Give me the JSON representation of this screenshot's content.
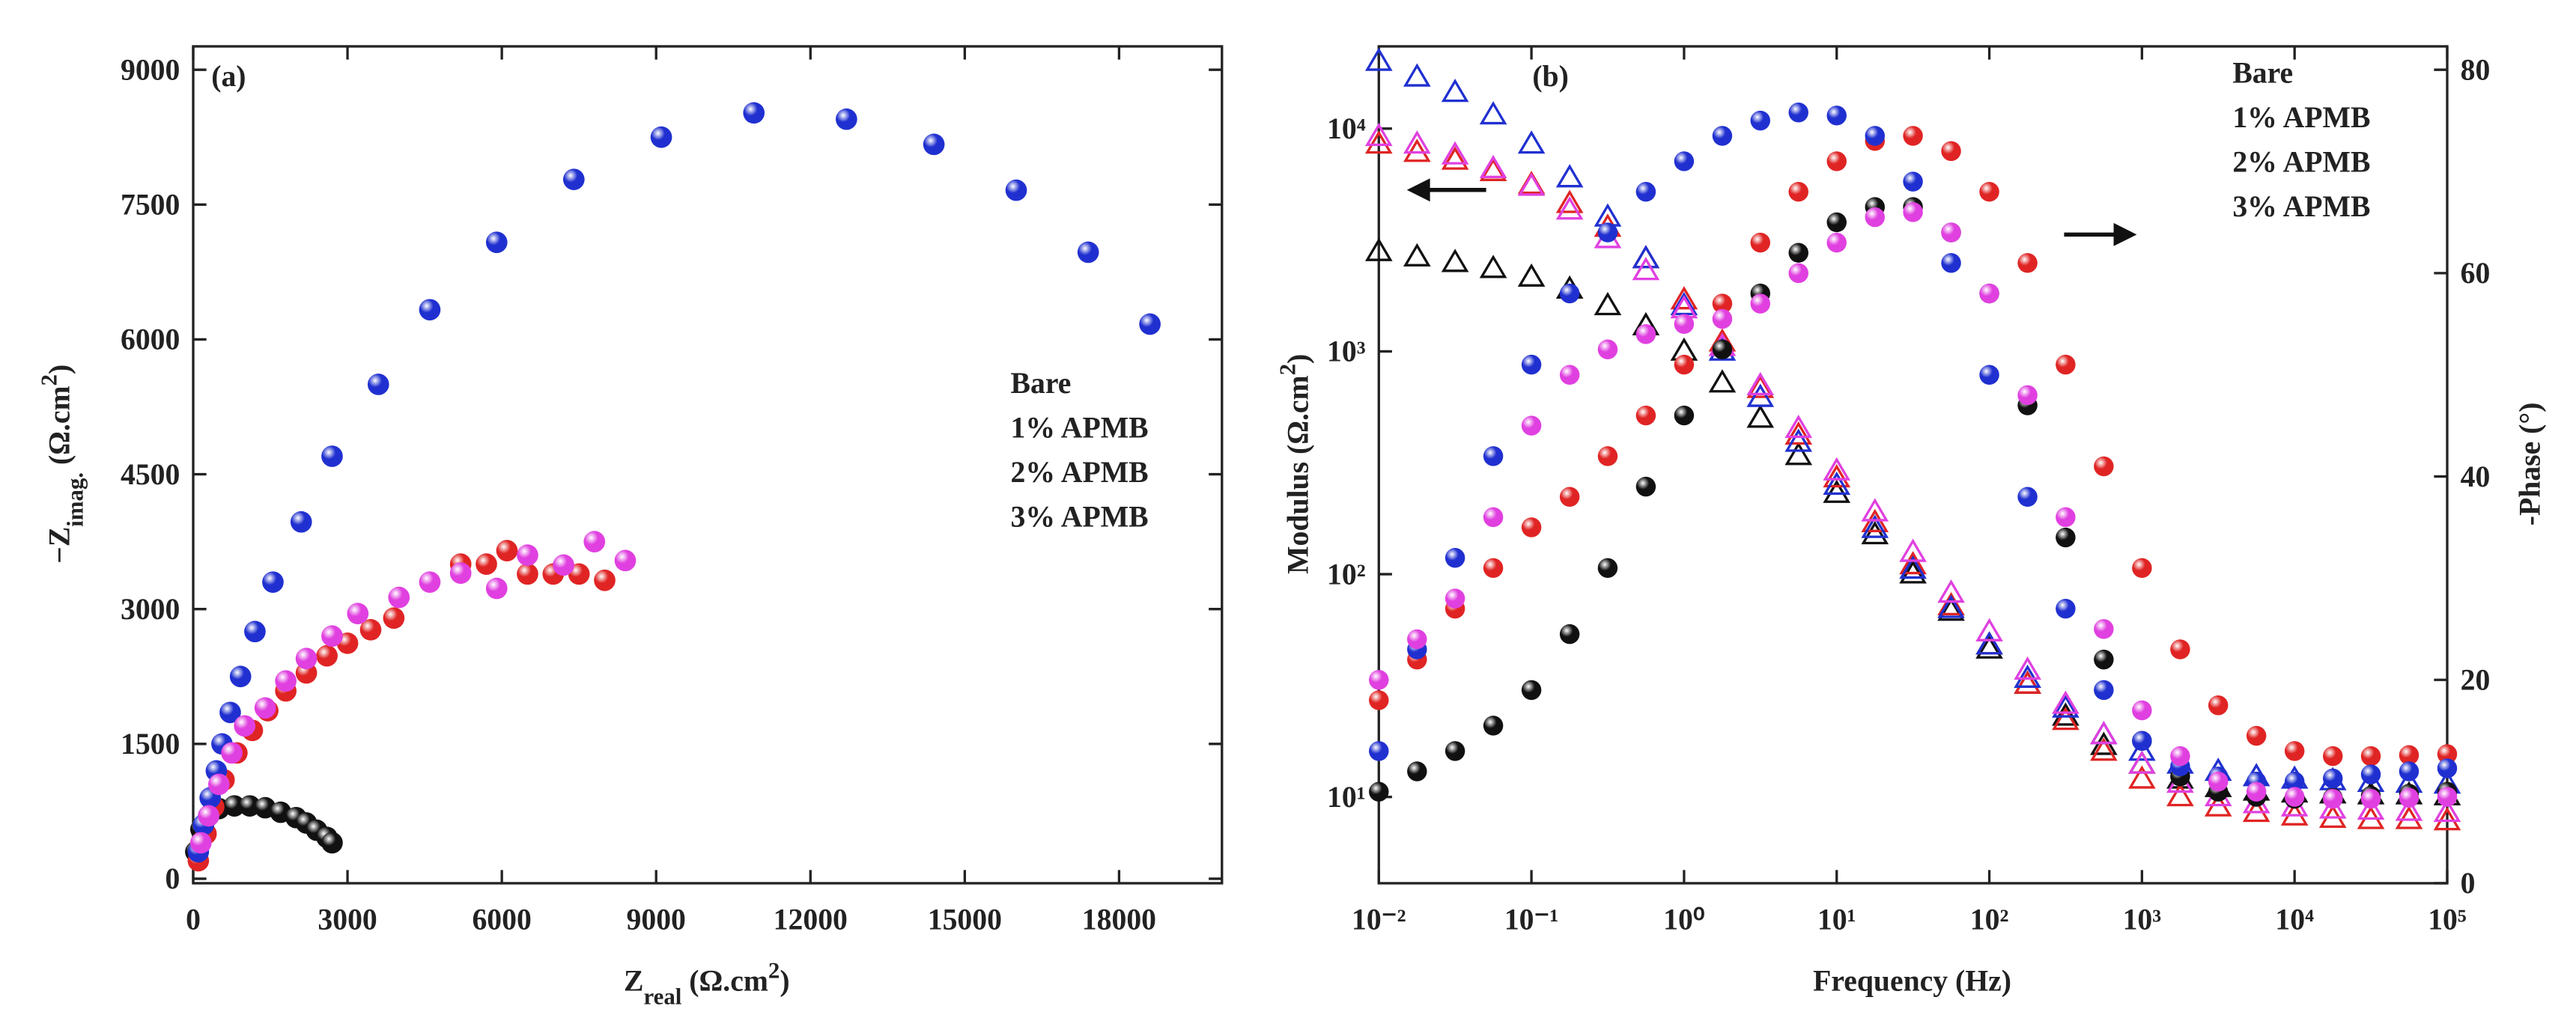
{
  "chart_data": [
    {
      "type": "scatter",
      "annotation": "(a)",
      "xlabel": [
        {
          "text": "Z"
        },
        {
          "text": "real",
          "shift": "sub"
        },
        {
          "text": " (Ω.cm"
        },
        {
          "text": "2",
          "shift": "super"
        },
        {
          "text": ")"
        }
      ],
      "ylabel": [
        {
          "text": "−Z"
        },
        {
          "text": "imag.",
          "shift": "sub"
        },
        {
          "text": " (Ω.cm"
        },
        {
          "text": "2",
          "shift": "super"
        },
        {
          "text": ")"
        }
      ],
      "xlim": [
        0,
        20000
      ],
      "ylim": [
        -50,
        9260
      ],
      "xticks": [
        0,
        3000,
        6000,
        9000,
        12000,
        15000,
        18000
      ],
      "yticks": [
        0,
        1500,
        3000,
        4500,
        6000,
        7500,
        9000
      ],
      "legend": "center-right",
      "series": [
        {
          "name": "Bare",
          "color": "#111111",
          "x": [
            50,
            150,
            300,
            500,
            800,
            1100,
            1400,
            1700,
            2000,
            2200,
            2400,
            2600,
            2700
          ],
          "values": [
            300,
            550,
            700,
            780,
            810,
            810,
            790,
            740,
            680,
            620,
            540,
            460,
            400
          ]
        },
        {
          "name": "1% APMB",
          "color": "#e02424",
          "x": [
            100,
            250,
            400,
            600,
            850,
            1150,
            1450,
            1800,
            2200,
            2600,
            3000,
            3450,
            3900,
            5200,
            5700,
            6100,
            6500,
            7000,
            7500,
            8000
          ],
          "values": [
            200,
            500,
            800,
            1100,
            1400,
            1650,
            1870,
            2090,
            2290,
            2480,
            2620,
            2770,
            2900,
            3500,
            3500,
            3650,
            3390,
            3390,
            3390,
            3320
          ]
        },
        {
          "name": "2% APMB",
          "color": "#2030d0",
          "x": [
            100,
            200,
            330,
            450,
            560,
            720,
            920,
            1200,
            1550,
            2100,
            2700,
            3600,
            4600,
            5900,
            7400,
            9100,
            10900,
            12700,
            14400,
            16000,
            17400,
            18600
          ],
          "values": [
            300,
            600,
            900,
            1200,
            1500,
            1850,
            2250,
            2750,
            3300,
            3970,
            4700,
            5500,
            6330,
            7080,
            7780,
            8250,
            8520,
            8450,
            8170,
            7660,
            6970,
            6170
          ]
        },
        {
          "name": "3% APMB",
          "color": "#e040e0",
          "x": [
            150,
            300,
            500,
            750,
            1000,
            1400,
            1800,
            2200,
            2700,
            3200,
            4000,
            4600,
            5200,
            5900,
            6500,
            7200,
            7800,
            8400
          ],
          "values": [
            400,
            700,
            1050,
            1400,
            1700,
            1900,
            2200,
            2450,
            2700,
            2950,
            3130,
            3300,
            3400,
            3230,
            3600,
            3490,
            3750,
            3540
          ]
        }
      ]
    },
    {
      "type": "bode",
      "annotation": "(b)",
      "xlabel": [
        {
          "text": "Frequency (Hz)"
        }
      ],
      "ylabel": [
        {
          "text": "Modulus (Ω.cm"
        },
        {
          "text": "2",
          "shift": "super"
        },
        {
          "text": ")"
        }
      ],
      "y2label": [
        {
          "text": "-Phase (°)"
        }
      ],
      "xscale": "log",
      "yscale": "log",
      "xlim": [
        0.01,
        100000
      ],
      "ylim": [
        4.1,
        23400
      ],
      "y2lim": [
        0,
        82.3
      ],
      "xticks": [
        {
          "value": 0.01,
          "label": "10⁻²"
        },
        {
          "value": 0.1,
          "label": "10⁻¹"
        },
        {
          "value": 1,
          "label": "10⁰"
        },
        {
          "value": 10,
          "label": "10¹"
        },
        {
          "value": 100,
          "label": "10²"
        },
        {
          "value": 1000,
          "label": "10³"
        },
        {
          "value": 10000,
          "label": "10⁴"
        },
        {
          "value": 100000,
          "label": "10⁵"
        }
      ],
      "yticks": [
        {
          "value": 10,
          "label": "10¹"
        },
        {
          "value": 100,
          "label": "10²"
        },
        {
          "value": 1000,
          "label": "10³"
        },
        {
          "value": 10000,
          "label": "10⁴"
        }
      ],
      "y2ticks": [
        0,
        20,
        40,
        60,
        80
      ],
      "legend": "top-right",
      "x": [
        0.01,
        0.0178,
        0.0316,
        0.0562,
        0.1,
        0.178,
        0.316,
        0.562,
        1,
        1.78,
        3.16,
        5.62,
        10,
        17.8,
        31.6,
        56.2,
        100,
        178,
        316,
        562,
        1000,
        1780,
        3160,
        5620,
        10000,
        17800,
        31600,
        56200,
        100000
      ],
      "series": [
        {
          "name": "Bare",
          "color": "#111111",
          "modulus": {
            "values": [
              2800,
              2650,
              2500,
              2350,
              2150,
              1900,
              1600,
              1300,
              1000,
              720,
              500,
              340,
              230,
              150,
              100,
              68,
              46,
              32,
              23,
              17,
              14,
              12,
              11,
              10.6,
              10.4,
              10.3,
              10.2,
              10.2,
              10.1
            ]
          },
          "phase": {
            "axis": "y2",
            "values": [
              9,
              11,
              13,
              15.5,
              19,
              24.5,
              31,
              39,
              46,
              52.5,
              58,
              62,
              65,
              66.5,
              66.5,
              64,
              58,
              47,
              34,
              22,
              14,
              10.5,
              9,
              8.5,
              8.3,
              8.4,
              8.6,
              8.8,
              9
            ]
          }
        },
        {
          "name": "1% APMB",
          "color": "#e02424",
          "modulus": {
            "values": [
              8500,
              7800,
              7200,
              6400,
              5600,
              4600,
              3600,
              2600,
              1700,
              1100,
              680,
              420,
              270,
              170,
              110,
              72,
              48,
              32,
              22,
              16,
              12,
              10,
              9,
              8.5,
              8.2,
              8,
              7.9,
              7.9,
              7.8
            ]
          },
          "phase": {
            "axis": "y2",
            "values": [
              18,
              22,
              27,
              31,
              35,
              38,
              42,
              46,
              51,
              57,
              63,
              68,
              71,
              73,
              73.5,
              72,
              68,
              61,
              51,
              41,
              31,
              23,
              17.5,
              14.5,
              13,
              12.5,
              12.5,
              12.6,
              12.7
            ]
          }
        },
        {
          "name": "2% APMB",
          "color": "#2030d0",
          "modulus": {
            "values": [
              20000,
              17000,
              14500,
              11500,
              8500,
              6000,
              4000,
              2600,
              1600,
              1000,
              620,
              390,
              250,
              160,
              105,
              70,
              48,
              34,
              25,
              19,
              16,
              14,
              13,
              12.3,
              12,
              11.8,
              11.6,
              11.5,
              11.4
            ]
          },
          "phase": {
            "axis": "y2",
            "values": [
              13,
              23,
              32,
              42,
              51,
              58,
              64,
              68,
              71,
              73.5,
              75,
              75.8,
              75.5,
              73.5,
              69,
              61,
              50,
              38,
              27,
              19,
              14,
              11.5,
              10.5,
              10,
              10,
              10.3,
              10.7,
              11,
              11.3
            ]
          }
        },
        {
          "name": "3% APMB",
          "color": "#e040e0",
          "modulus": {
            "values": [
              9200,
              8500,
              7600,
              6600,
              5500,
              4300,
              3200,
              2300,
              1550,
              1050,
              700,
              450,
              290,
              190,
              125,
              82,
              55,
              37,
              26,
              19,
              14,
              11.5,
              10,
              9.3,
              9,
              8.8,
              8.7,
              8.6,
              8.5
            ]
          },
          "phase": {
            "axis": "y2",
            "values": [
              20,
              24,
              28,
              36,
              45,
              50,
              52.5,
              54,
              55,
              55.5,
              57,
              60,
              63,
              65.5,
              66,
              64,
              58,
              48,
              36,
              25,
              17,
              12.5,
              10,
              9,
              8.5,
              8.3,
              8.3,
              8.4,
              8.5
            ]
          }
        }
      ]
    }
  ]
}
